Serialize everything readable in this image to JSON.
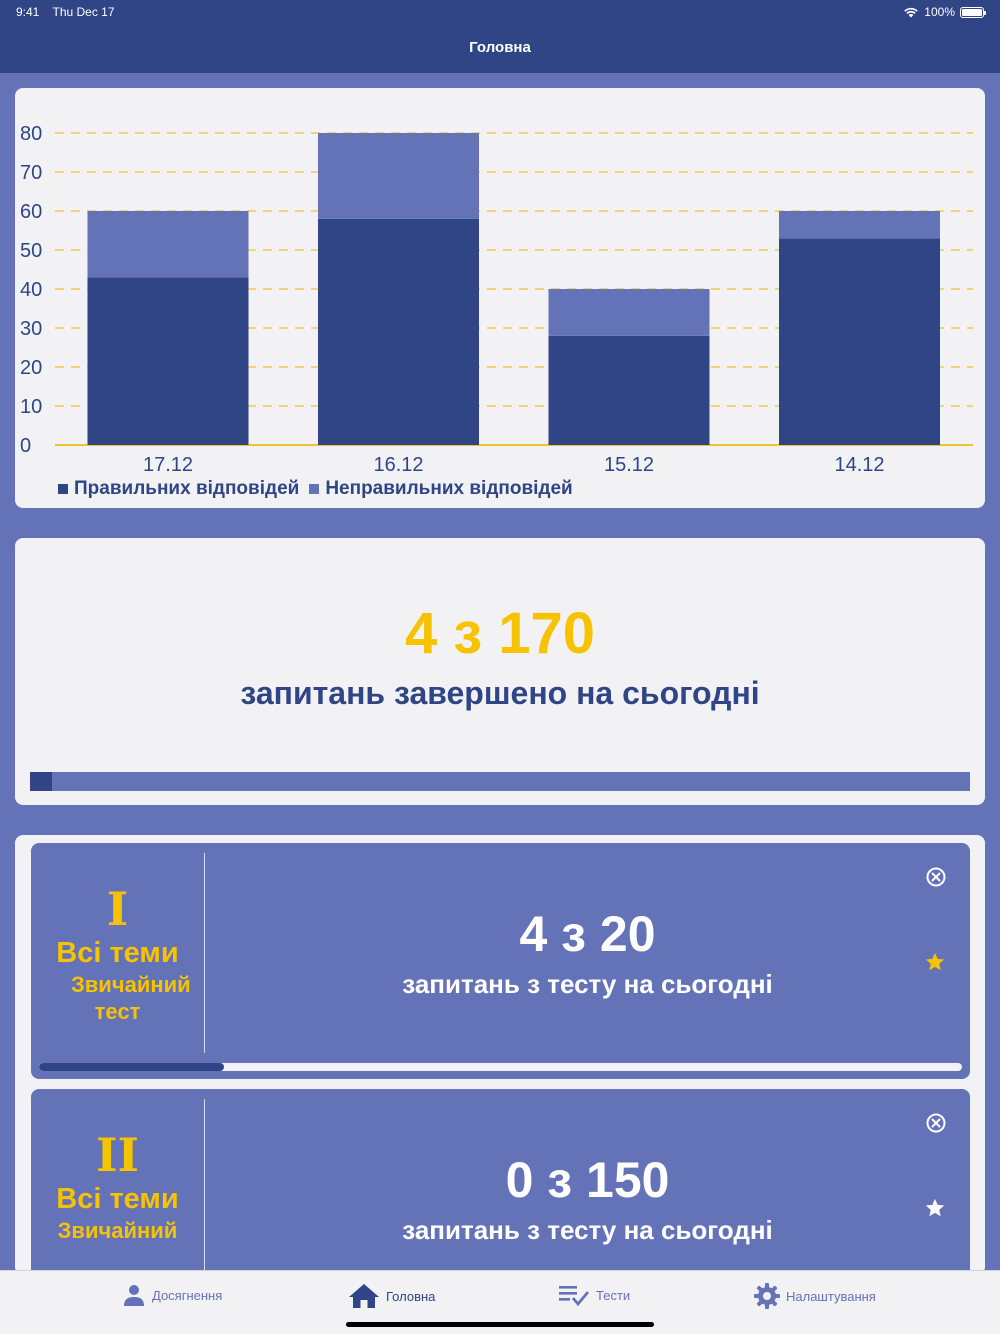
{
  "status_bar": {
    "time": "9:41",
    "date": "Thu Dec 17",
    "battery": "100%"
  },
  "nav": {
    "title": "Головна"
  },
  "colors": {
    "primary": "#2f4585",
    "secondary": "#6472b8",
    "accent": "#f7c200",
    "card": "#f2f2f4"
  },
  "chart_data": {
    "type": "bar",
    "stacked": true,
    "categories": [
      "17.12",
      "16.12",
      "15.12",
      "14.12"
    ],
    "series": [
      {
        "name": "Правильних відповідей",
        "values": [
          43,
          58,
          28,
          53
        ],
        "color": "#2f4585"
      },
      {
        "name": "Неправильних відповідей",
        "values": [
          17,
          22,
          12,
          7
        ],
        "color": "#6472b8"
      }
    ],
    "yticks": [
      "0",
      "10",
      "20",
      "30",
      "40",
      "50",
      "60",
      "70",
      "80"
    ],
    "ylim": [
      0,
      80
    ],
    "grid": true,
    "legend": "bottom-left"
  },
  "summary": {
    "count_text": "4 з 170",
    "caption": "запитань завершено на сьогодні",
    "progress": 0.0235
  },
  "tests": [
    {
      "numeral": "I",
      "topic": "Всі теми",
      "type": "Звичайний тест",
      "count_text": "4 з 20",
      "caption": "запитань з тесту на сьогодні",
      "progress": 0.2,
      "favorite": true,
      "close_icon": "close-circle-icon",
      "star_icon": "star-icon"
    },
    {
      "numeral": "II",
      "topic": "Всі теми",
      "type": "Звичайний",
      "count_text": "0 з 150",
      "caption": "запитань з тесту на сьогодні",
      "progress": 0,
      "favorite": false,
      "close_icon": "close-circle-icon",
      "star_icon": "star-icon"
    }
  ],
  "tabbar": {
    "items": [
      {
        "label": "Досягнення",
        "icon": "person-icon",
        "active": false
      },
      {
        "label": "Головна",
        "icon": "home-icon",
        "active": true
      },
      {
        "label": "Тести",
        "icon": "checklist-icon",
        "active": false
      },
      {
        "label": "Налаштування",
        "icon": "gear-icon",
        "active": false
      }
    ]
  }
}
